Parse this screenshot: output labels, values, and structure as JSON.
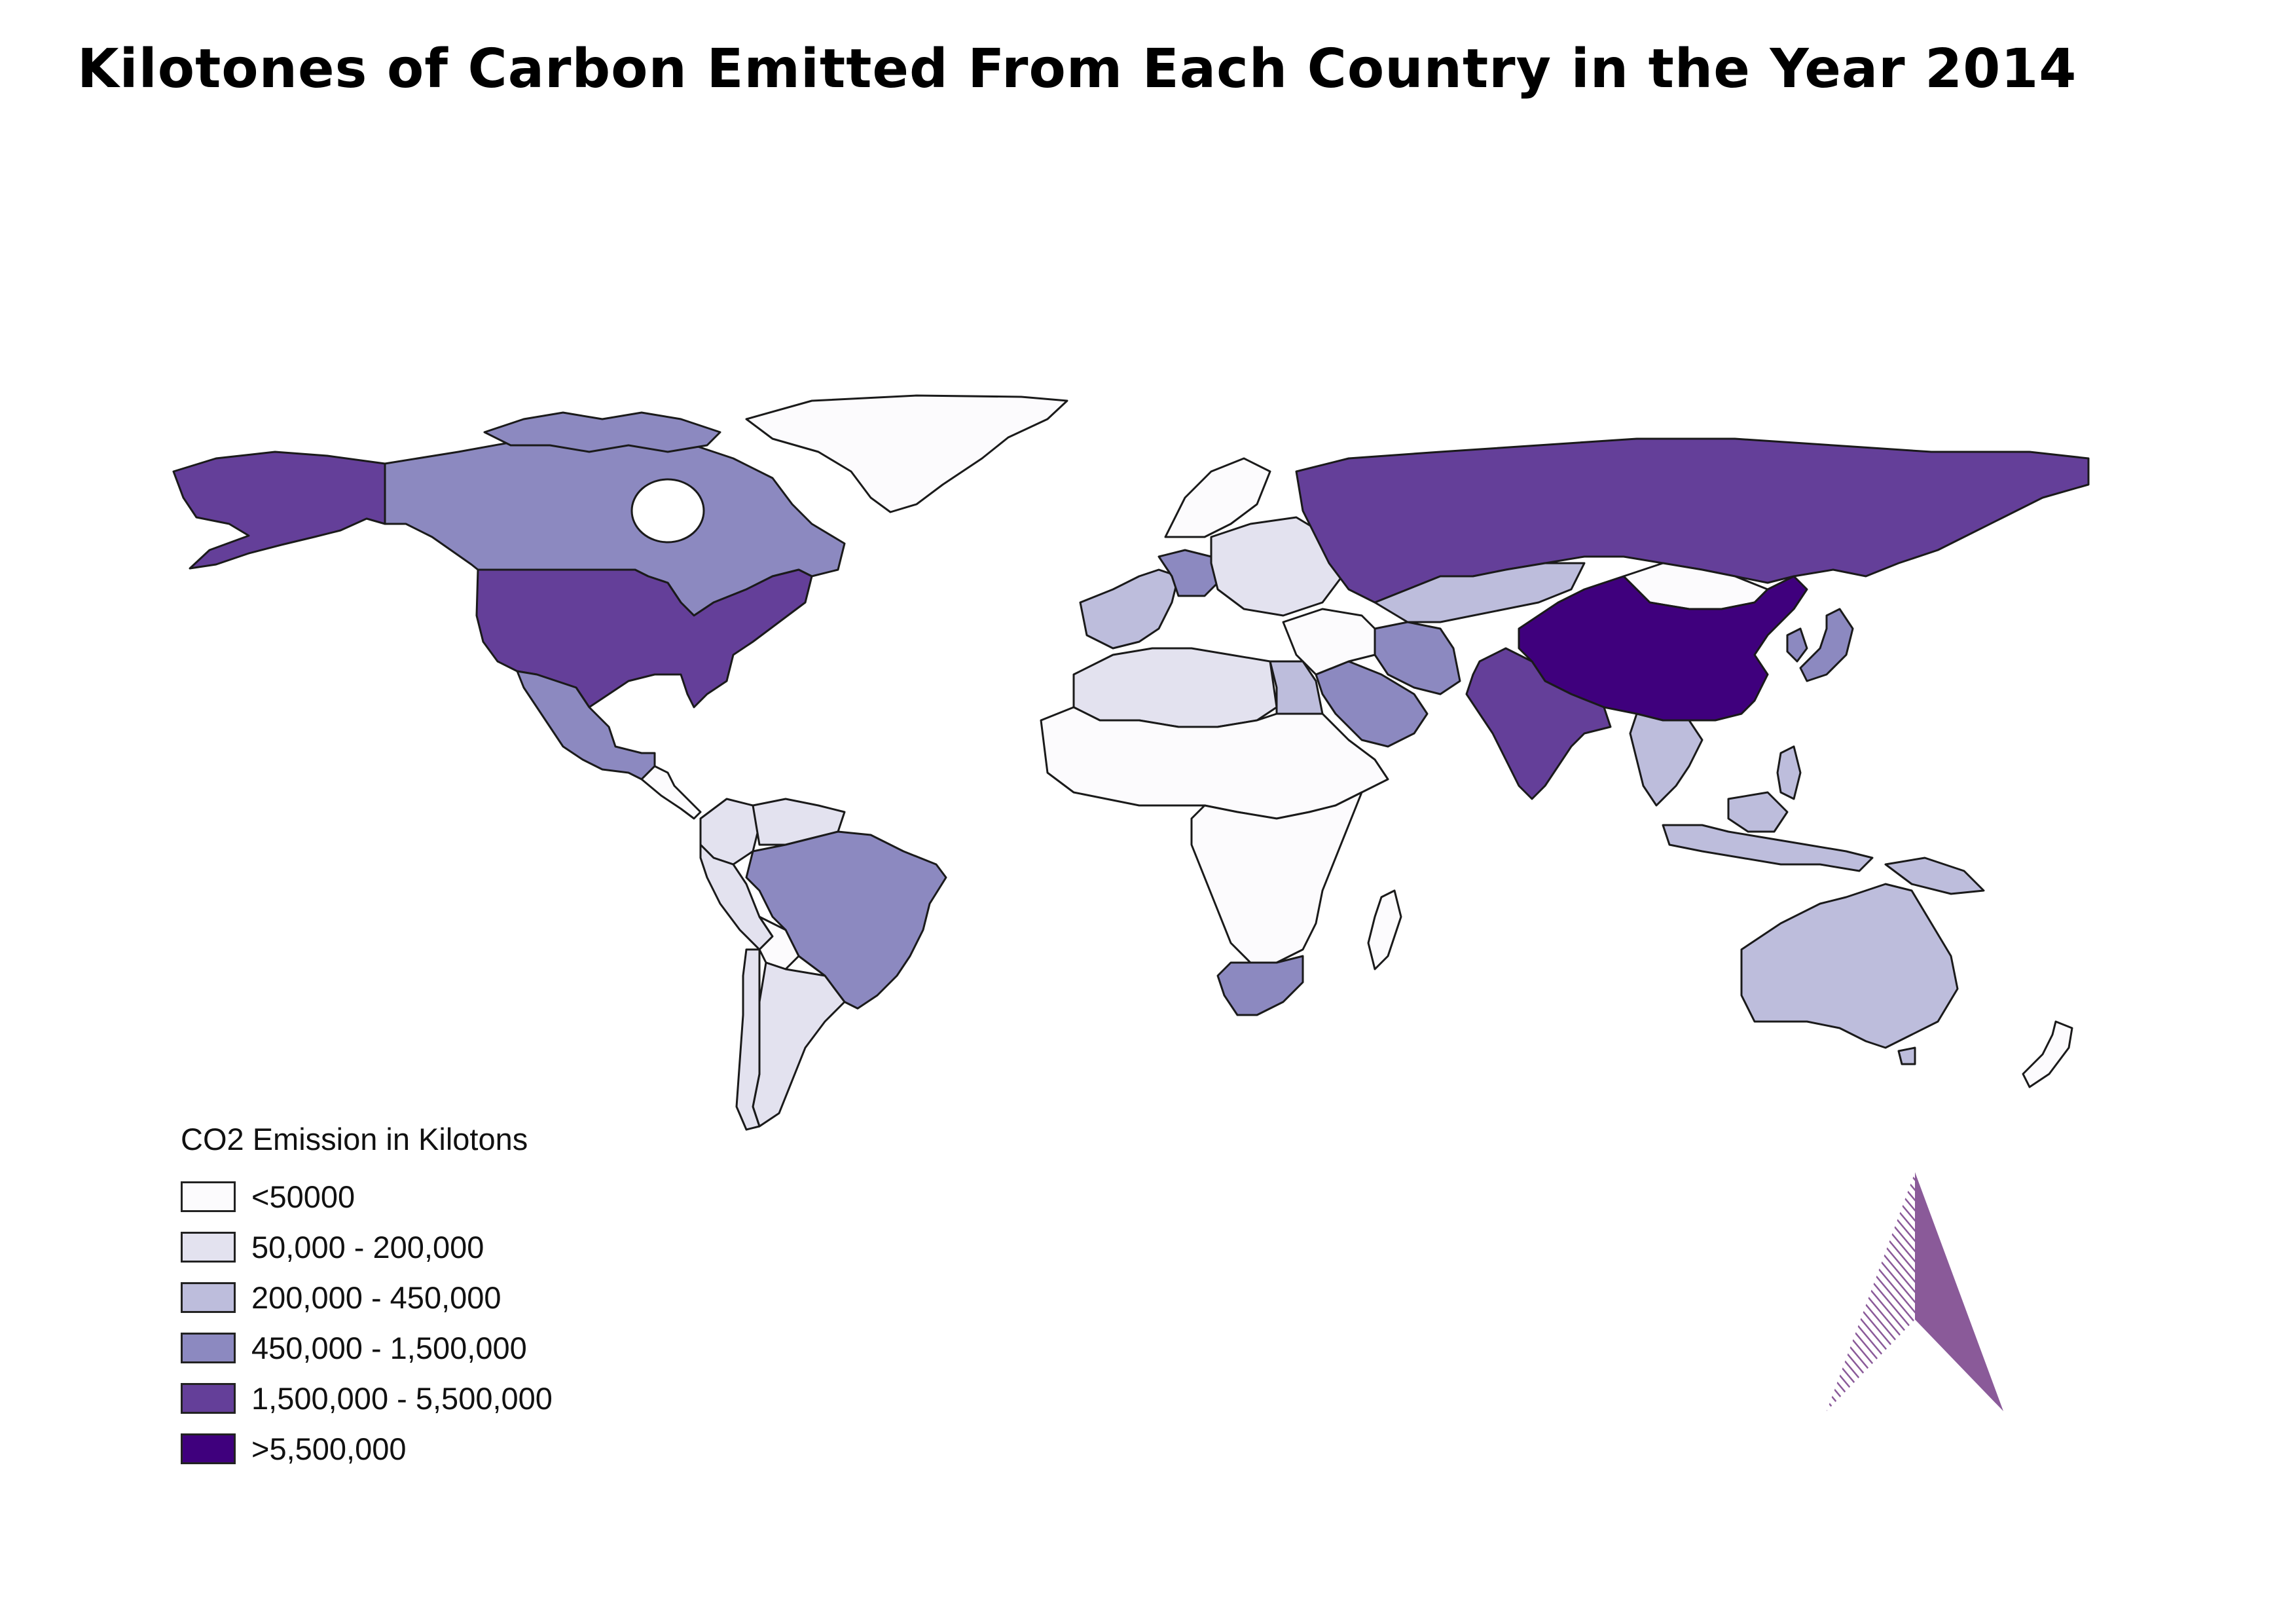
{
  "title": "Kilotones of Carbon Emitted From Each Country in the Year 2014",
  "legend": {
    "title": "CO2 Emission in Kilotons",
    "classes": [
      {
        "label": "<50000",
        "color": "#fcfbfd"
      },
      {
        "label": "50,000 - 200,000",
        "color": "#e3e2ef"
      },
      {
        "label": "200,000 - 450,000",
        "color": "#bdbddc"
      },
      {
        "label": "450,000 - 1,500,000",
        "color": "#8c89c0"
      },
      {
        "label": "1,500,000 - 5,500,000",
        "color": "#643f99"
      },
      {
        "label": ">5,500,000",
        "color": "#3f007d"
      }
    ]
  },
  "north_arrow": {
    "icon": "north-arrow-icon",
    "color": "#8a5a99"
  },
  "regions": {
    "greenland": 0,
    "alaska": 4,
    "canada": 3,
    "usa": 4,
    "mexico": 3,
    "central-america": 0,
    "colombia": 1,
    "venezuela": 1,
    "peru": 1,
    "brazil": 3,
    "bolivia": 0,
    "argentina": 1,
    "chile": 1,
    "western-europe": 2,
    "germany": 3,
    "eastern-europe": 1,
    "russia": 4,
    "kazakhstan": 2,
    "mongolia": 0,
    "china": 5,
    "india": 4,
    "iran": 3,
    "saudi-arabia": 3,
    "north-africa": 1,
    "egypt": 2,
    "sahel": 0,
    "central-africa": 0,
    "south-africa": 3,
    "madagascar": 0,
    "southeast-asia": 2,
    "indonesia": 2,
    "japan": 3,
    "korea": 3,
    "australia": 2,
    "new-zealand": 0
  }
}
